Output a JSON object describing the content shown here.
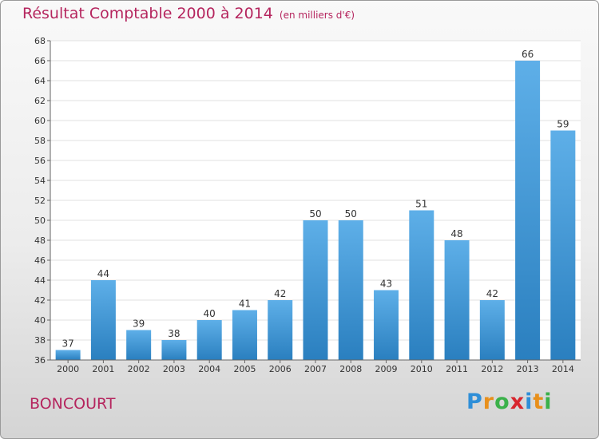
{
  "chart_data": {
    "type": "bar",
    "title": "Résultat Comptable 2000 à 2014",
    "subtitle": "(en milliers d'€)",
    "categories": [
      "2000",
      "2001",
      "2002",
      "2003",
      "2004",
      "2005",
      "2006",
      "2007",
      "2008",
      "2009",
      "2010",
      "2011",
      "2012",
      "2013",
      "2014"
    ],
    "values": [
      37,
      44,
      39,
      38,
      40,
      41,
      42,
      50,
      50,
      43,
      51,
      48,
      42,
      66,
      59
    ],
    "ylim": [
      36,
      68
    ],
    "ytick_step": 2,
    "xlabel": "",
    "ylabel": "",
    "grid": true,
    "bar_color_top": "#5eafe8",
    "bar_color_bottom": "#2a7fbf"
  },
  "footer": {
    "town": "BONCOURT",
    "logo_letters": [
      {
        "ch": "P",
        "color": "#2f8fd8"
      },
      {
        "ch": "r",
        "color": "#e8901c"
      },
      {
        "ch": "o",
        "color": "#3bb14a"
      },
      {
        "ch": "x",
        "color": "#d8262e"
      },
      {
        "ch": "i",
        "color": "#2f8fd8"
      },
      {
        "ch": "t",
        "color": "#e8901c"
      },
      {
        "ch": "i",
        "color": "#3bb14a"
      }
    ]
  }
}
